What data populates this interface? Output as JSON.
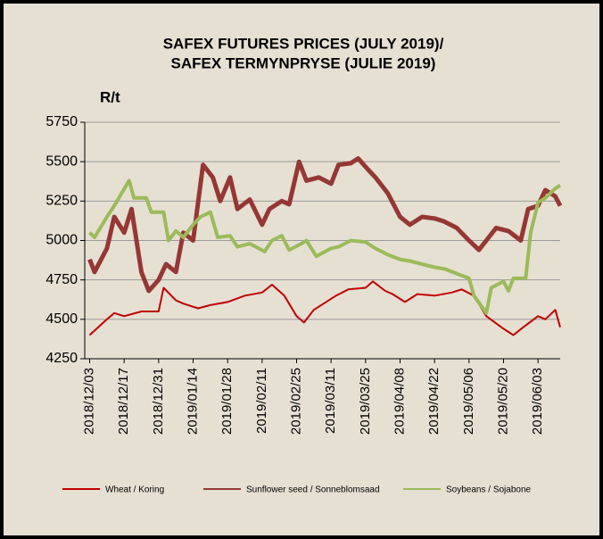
{
  "chart_data": {
    "type": "line",
    "title": "SAFEX FUTURES PRICES (JULY 2019)/",
    "subtitle": "SAFEX TERMYNPRYSE (JULIE 2019)",
    "y_label": "R/t",
    "ylim": [
      4250,
      5750
    ],
    "yticks": [
      4250,
      4500,
      4750,
      5000,
      5250,
      5500,
      5750
    ],
    "xlim": [
      "2018/12/01",
      "2019/06/12"
    ],
    "xticks": [
      "2018/12/03",
      "2018/12/17",
      "2018/12/31",
      "2019/01/14",
      "2019/01/28",
      "2019/02/11",
      "2019/02/25",
      "2019/03/11",
      "2019/03/25",
      "2019/04/08",
      "2019/04/22",
      "2019/05/06",
      "2019/05/20",
      "2019/06/03"
    ],
    "grid": true,
    "legend": "bottom",
    "series": [
      {
        "name": "Wheat / Koring",
        "color": "#c00000",
        "width": 2,
        "x": [
          "2018/12/03",
          "2018/12/10",
          "2018/12/13",
          "2018/12/17",
          "2018/12/24",
          "2018/12/31",
          "2019/01/02",
          "2019/01/07",
          "2019/01/10",
          "2019/01/16",
          "2019/01/21",
          "2019/01/28",
          "2019/02/04",
          "2019/02/11",
          "2019/02/15",
          "2019/02/20",
          "2019/02/25",
          "2019/02/28",
          "2019/03/04",
          "2019/03/08",
          "2019/03/13",
          "2019/03/18",
          "2019/03/25",
          "2019/03/28",
          "2019/04/02",
          "2019/04/05",
          "2019/04/10",
          "2019/04/15",
          "2019/04/22",
          "2019/04/29",
          "2019/05/03",
          "2019/05/08",
          "2019/05/13",
          "2019/05/20",
          "2019/05/24",
          "2019/05/28",
          "2019/06/03",
          "2019/06/06",
          "2019/06/10",
          "2019/06/12"
        ],
        "values": [
          4400,
          4500,
          4540,
          4520,
          4550,
          4550,
          4700,
          4620,
          4600,
          4570,
          4590,
          4610,
          4650,
          4670,
          4720,
          4650,
          4520,
          4480,
          4560,
          4600,
          4650,
          4690,
          4700,
          4740,
          4680,
          4660,
          4610,
          4660,
          4650,
          4670,
          4690,
          4650,
          4520,
          4440,
          4400,
          4450,
          4520,
          4500,
          4560,
          4450
        ]
      },
      {
        "name": "Sunflower seed / Sonneblomsaad",
        "color": "#953735",
        "width": 5,
        "x": [
          "2018/12/03",
          "2018/12/05",
          "2018/12/10",
          "2018/12/13",
          "2018/12/17",
          "2018/12/20",
          "2018/12/24",
          "2018/12/27",
          "2018/12/31",
          "2019/01/03",
          "2019/01/07",
          "2019/01/10",
          "2019/01/14",
          "2019/01/18",
          "2019/01/22",
          "2019/01/25",
          "2019/01/29",
          "2019/02/01",
          "2019/02/06",
          "2019/02/11",
          "2019/02/14",
          "2019/02/19",
          "2019/02/22",
          "2019/02/26",
          "2019/03/01",
          "2019/03/06",
          "2019/03/11",
          "2019/03/14",
          "2019/03/19",
          "2019/03/22",
          "2019/03/26",
          "2019/03/29",
          "2019/04/03",
          "2019/04/08",
          "2019/04/12",
          "2019/04/17",
          "2019/04/22",
          "2019/04/26",
          "2019/05/01",
          "2019/05/06",
          "2019/05/10",
          "2019/05/14",
          "2019/05/17",
          "2019/05/22",
          "2019/05/27",
          "2019/05/30",
          "2019/06/03",
          "2019/06/06",
          "2019/06/10",
          "2019/06/12"
        ],
        "values": [
          4880,
          4800,
          4950,
          5150,
          5050,
          5200,
          4800,
          4680,
          4750,
          4850,
          4800,
          5050,
          5000,
          5480,
          5400,
          5250,
          5400,
          5200,
          5260,
          5100,
          5200,
          5250,
          5230,
          5500,
          5380,
          5400,
          5360,
          5480,
          5490,
          5520,
          5450,
          5400,
          5300,
          5150,
          5100,
          5150,
          5140,
          5120,
          5080,
          5000,
          4940,
          5020,
          5080,
          5060,
          5000,
          5200,
          5220,
          5320,
          5280,
          5220
        ]
      },
      {
        "name": "Soybeans / Sojabone",
        "color": "#9bbb59",
        "width": 4,
        "x": [
          "2018/12/03",
          "2018/12/05",
          "2018/12/10",
          "2018/12/13",
          "2018/12/19",
          "2018/12/21",
          "2018/12/26",
          "2018/12/28",
          "2019/01/02",
          "2019/01/04",
          "2019/01/07",
          "2019/01/10",
          "2019/01/14",
          "2019/01/17",
          "2019/01/21",
          "2019/01/24",
          "2019/01/29",
          "2019/02/01",
          "2019/02/06",
          "2019/02/12",
          "2019/02/15",
          "2019/02/19",
          "2019/02/22",
          "2019/02/27",
          "2019/03/01",
          "2019/03/05",
          "2019/03/11",
          "2019/03/14",
          "2019/03/19",
          "2019/03/25",
          "2019/03/29",
          "2019/04/03",
          "2019/04/08",
          "2019/04/12",
          "2019/04/17",
          "2019/04/22",
          "2019/04/26",
          "2019/05/01",
          "2019/05/06",
          "2019/05/08",
          "2019/05/13",
          "2019/05/15",
          "2019/05/20",
          "2019/05/22",
          "2019/05/24",
          "2019/05/29",
          "2019/05/31",
          "2019/06/03",
          "2019/06/06",
          "2019/06/10",
          "2019/06/12"
        ],
        "values": [
          5050,
          5020,
          5150,
          5220,
          5380,
          5270,
          5270,
          5180,
          5180,
          5000,
          5060,
          5020,
          5100,
          5150,
          5180,
          5020,
          5030,
          4960,
          4980,
          4930,
          5000,
          5030,
          4940,
          4980,
          5000,
          4900,
          4950,
          4960,
          5000,
          4990,
          4950,
          4910,
          4880,
          4870,
          4850,
          4830,
          4820,
          4790,
          4760,
          4650,
          4540,
          4700,
          4740,
          4680,
          4760,
          4760,
          5050,
          5240,
          5270,
          5330,
          5350
        ]
      }
    ]
  }
}
